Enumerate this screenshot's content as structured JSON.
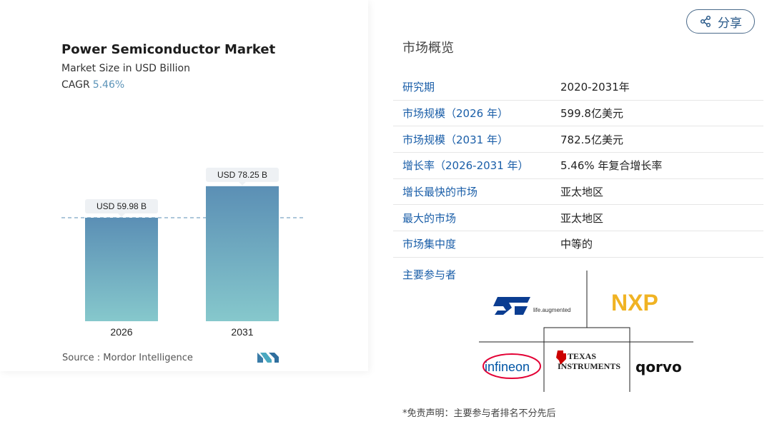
{
  "chart": {
    "title": "Power Semiconductor Market",
    "subtitle": "Market Size in USD Billion",
    "cagr_label": "CAGR",
    "cagr_value": "5.46%",
    "source": "Source : Mordor Intelligence",
    "bar_labels": [
      "USD 59.98 B",
      "USD 78.25 B"
    ]
  },
  "chart_data": {
    "type": "bar",
    "categories": [
      "2026",
      "2031"
    ],
    "values": [
      59.98,
      78.25
    ],
    "title": "Power Semiconductor Market",
    "ylabel": "Market Size in USD Billion",
    "ylim": [
      0,
      85
    ],
    "grid": false
  },
  "share": {
    "label": "分享"
  },
  "overview": {
    "title": "市场概览",
    "rows": [
      {
        "key": "研究期",
        "value": "2020-2031年"
      },
      {
        "key": "市场规模（2026 年）",
        "value": "599.8亿美元"
      },
      {
        "key": "市场规模（2031 年）",
        "value": "782.5亿美元"
      },
      {
        "key": "增长率（2026-2031 年）",
        "value": "5.46% 年复合增长率"
      },
      {
        "key": "增长最快的市场",
        "value": "亚太地区"
      },
      {
        "key": "最大的市场",
        "value": "亚太地区"
      },
      {
        "key": "市场集中度",
        "value": "中等的"
      }
    ]
  },
  "players": {
    "title": "主要参与者",
    "logos": {
      "st": "life.augmented",
      "nxp": "NXP",
      "infineon": "infineon",
      "ti_line1": "TEXAS",
      "ti_line2": "INSTRUMENTS",
      "qorvo": "qorvo"
    }
  },
  "disclaimer": "*免责声明：主要参与者排名不分先后",
  "colors": {
    "bar_top": "#5b8fb5",
    "bar_bottom": "#86c8cc",
    "key_text": "#1a5ea8",
    "cagr_accent": "#5b93b8"
  }
}
